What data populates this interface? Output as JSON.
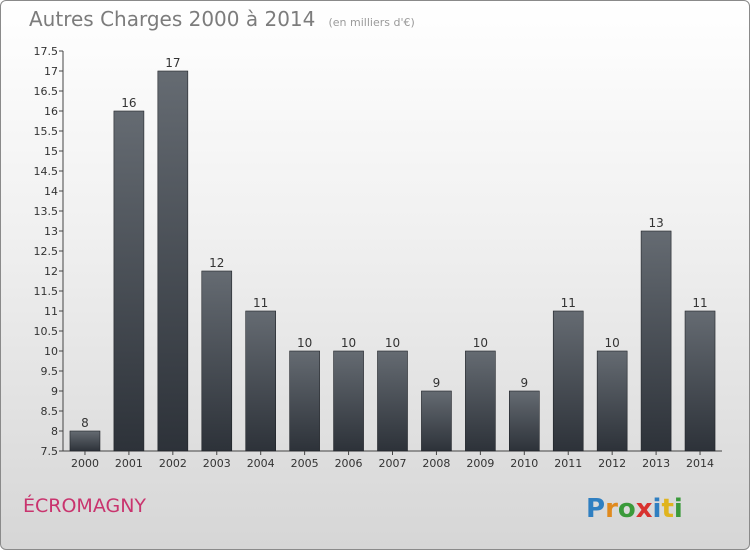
{
  "header": {
    "title": "Autres Charges 2000 à 2014",
    "unit": "(en milliers d'€)"
  },
  "commune": "ÉCROMAGNY",
  "logo": {
    "text": "Proxiti"
  },
  "chart_data": {
    "type": "bar",
    "categories": [
      "2000",
      "2001",
      "2002",
      "2003",
      "2004",
      "2005",
      "2006",
      "2007",
      "2008",
      "2009",
      "2010",
      "2011",
      "2012",
      "2013",
      "2014"
    ],
    "values": [
      8,
      16,
      17,
      12,
      11,
      10,
      10,
      10,
      9,
      10,
      9,
      11,
      10,
      13,
      11
    ],
    "data_labels": [
      "8",
      "16",
      "17",
      "12",
      "11",
      "10",
      "10",
      "10",
      "9",
      "10",
      "9",
      "11",
      "10",
      "13",
      "11"
    ],
    "ylim": [
      7.5,
      17.5
    ],
    "yticks": [
      "7.5",
      "8",
      "8.5",
      "9",
      "9.5",
      "10",
      "10.5",
      "11",
      "11.5",
      "12",
      "12.5",
      "13",
      "13.5",
      "14",
      "14.5",
      "15",
      "15.5",
      "16",
      "16.5",
      "17",
      "17.5"
    ],
    "grid": false,
    "colors": {
      "bar_top": "#656b72",
      "bar_bottom": "#2d3239",
      "axis": "#444444",
      "label": "#333333"
    }
  }
}
